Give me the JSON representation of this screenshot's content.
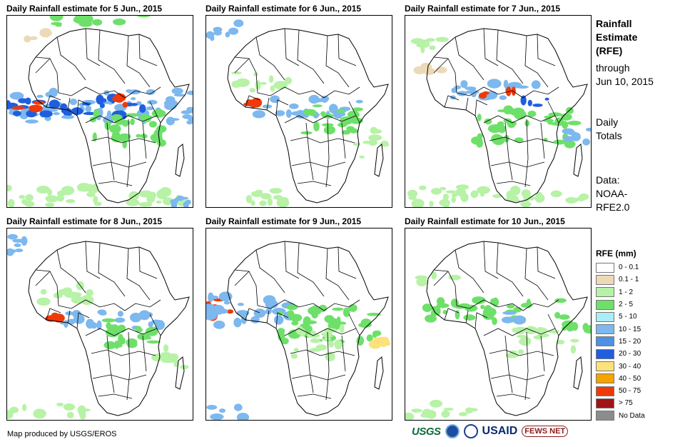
{
  "panels": [
    {
      "title": "Daily Rainfall estimate for 5 Jun., 2015",
      "rain": "wet"
    },
    {
      "title": "Daily Rainfall estimate for 6 Jun., 2015",
      "rain": "medium"
    },
    {
      "title": "Daily Rainfall estimate for 7 Jun., 2015",
      "rain": "storm"
    },
    {
      "title": "Daily Rainfall estimate for 8 Jun., 2015",
      "rain": "medium"
    },
    {
      "title": "Daily Rainfall estimate for 9 Jun., 2015",
      "rain": "westcoast"
    },
    {
      "title": "Daily Rainfall estimate for 10 Jun., 2015",
      "rain": "light"
    }
  ],
  "side": {
    "title": [
      "Rainfall",
      "Estimate",
      "(RFE)"
    ],
    "through": [
      "through",
      "Jun 10, 2015"
    ],
    "daily": [
      "Daily",
      "Totals"
    ],
    "data": [
      "Data:",
      "NOAA-",
      "RFE2.0"
    ]
  },
  "legend": {
    "title": "RFE (mm)",
    "items": [
      {
        "label": "0 - 0.1",
        "color": "#ffffff"
      },
      {
        "label": "0.1 - 1",
        "color": "#ecd9b7"
      },
      {
        "label": "1 - 2",
        "color": "#b7f2a6"
      },
      {
        "label": "2 - 5",
        "color": "#6ee06a"
      },
      {
        "label": "5 - 10",
        "color": "#a9eef6"
      },
      {
        "label": "10 - 15",
        "color": "#7db8ee"
      },
      {
        "label": "15 - 20",
        "color": "#4f90e6"
      },
      {
        "label": "20 - 30",
        "color": "#1f5fde"
      },
      {
        "label": "30 - 40",
        "color": "#fbe27a"
      },
      {
        "label": "40 - 50",
        "color": "#f5a300"
      },
      {
        "label": "50 - 75",
        "color": "#ee3a0a"
      },
      {
        "label": "> 75",
        "color": "#a01414"
      },
      {
        "label": "No Data",
        "color": "#8c8c8c"
      }
    ]
  },
  "credit": "Map produced by USGS/EROS",
  "logos": {
    "usgs": "USGS",
    "usaid": "USAID",
    "fews": "FEWS NET"
  }
}
